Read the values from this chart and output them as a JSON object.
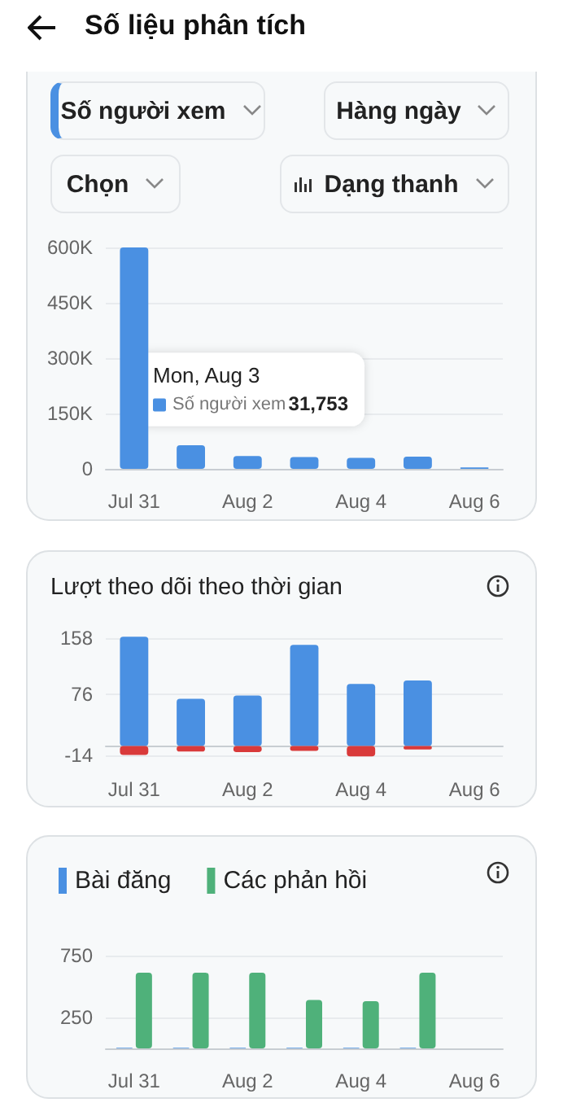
{
  "chart_data": [
    {
      "type": "bar",
      "title": "Số liệu phân tích",
      "annotations": [
        "Số người xem",
        "Hàng ngày",
        "Chọn",
        "Dạng thanh",
        "Mon, Aug 3"
      ],
      "categories": [
        "Jul 31",
        null,
        "Aug 2",
        null,
        "Aug 4",
        null,
        "Aug 6"
      ],
      "series": [
        {
          "name": "Số người xem",
          "color": "#4a90e2",
          "values": [
            600000,
            64000,
            35000,
            31753,
            30000,
            33000,
            4000
          ],
          "value_labels": [
            null,
            null,
            null,
            "31,753",
            null,
            null,
            null
          ]
        }
      ],
      "ylim": [
        0,
        600000
      ],
      "yticks": [
        0,
        {
          "value": 150000,
          "label": "150K"
        },
        {
          "value": 300000,
          "label": "300K"
        },
        {
          "value": 450000,
          "label": "450K"
        },
        {
          "value": 600000,
          "label": "600K"
        }
      ],
      "grid": "y"
    },
    {
      "type": "bar",
      "title": "Lượt theo dõi theo thời gian",
      "stacked": true,
      "categories": [
        "Jul 31",
        null,
        "Aug 2",
        null,
        "Aug 4",
        null,
        "Aug 6"
      ],
      "series": [
        {
          "color": "#4a90e2",
          "values": [
            160,
            69,
            74,
            148,
            91,
            96,
            null
          ]
        },
        {
          "color": "#d93a3a",
          "values": [
            -13,
            -8,
            -9,
            -7,
            -15,
            -5,
            null
          ]
        }
      ],
      "ylim": [
        -16,
        165
      ],
      "yticks": [
        -14,
        76,
        158
      ],
      "grid": "y"
    },
    {
      "type": "bar",
      "legend": "top left",
      "categories": [
        "Jul 31",
        null,
        "Aug 2",
        null,
        "Aug 4",
        null,
        "Aug 6"
      ],
      "series": [
        {
          "name": "Bài đăng",
          "color": "#4a90e2",
          "values": [
            5,
            5,
            5,
            5,
            5,
            5,
            null
          ]
        },
        {
          "name": "Các phản hồi",
          "color": "#4fb17a",
          "values": [
            610,
            610,
            610,
            390,
            380,
            610,
            null
          ]
        }
      ],
      "ylim": [
        0,
        760
      ],
      "yticks": [
        250,
        750
      ],
      "grid": "y"
    }
  ]
}
